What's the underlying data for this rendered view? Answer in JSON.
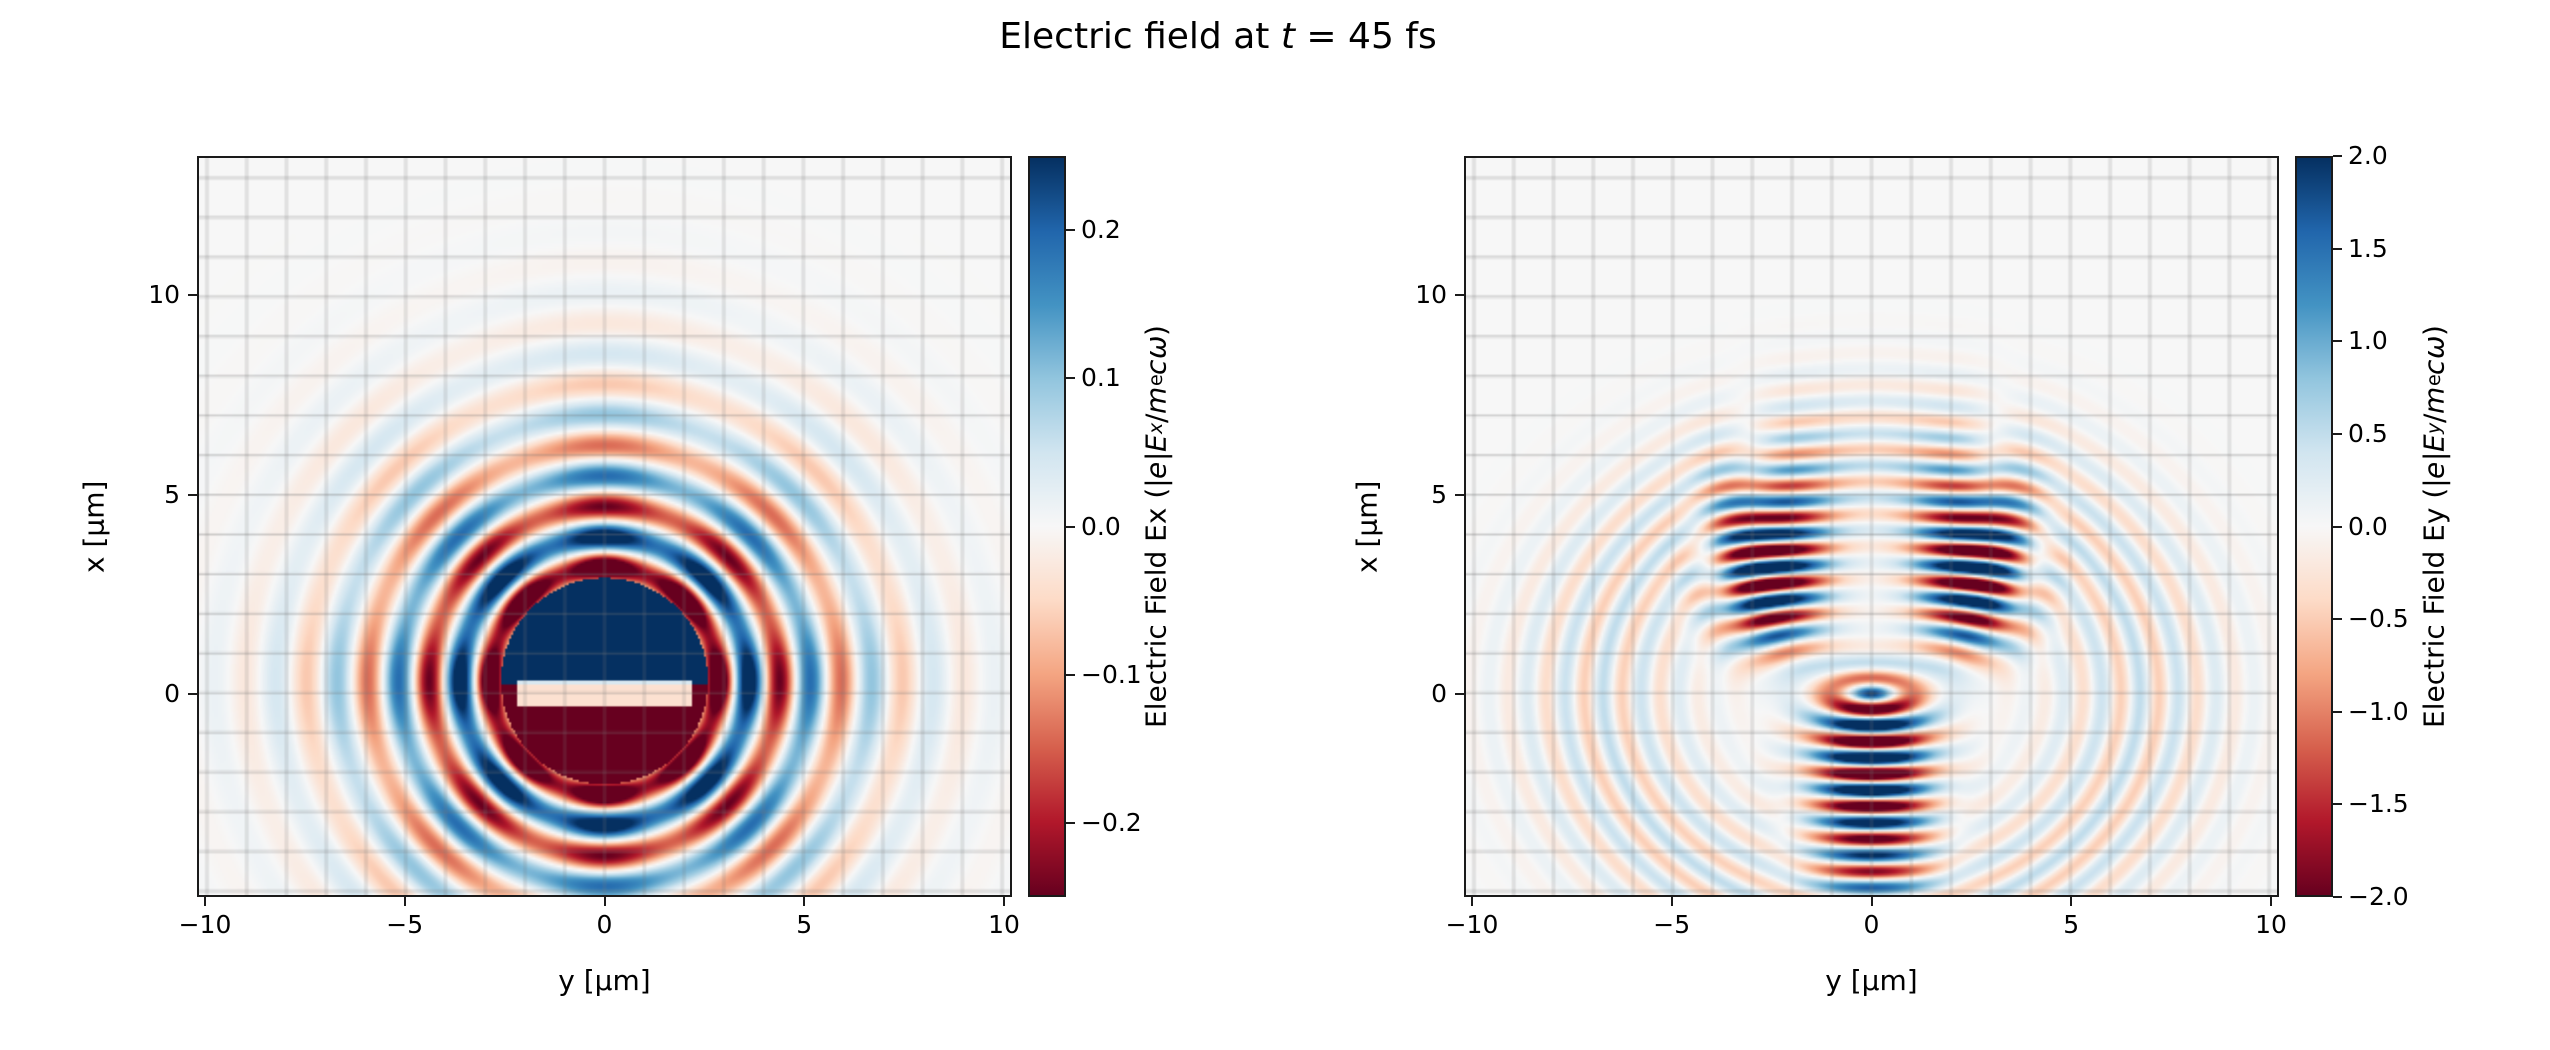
{
  "title": {
    "text": "Electric field at t = 45 fs",
    "parts": [
      {
        "t": "Electric field at "
      },
      {
        "t": "t",
        "s": "i"
      },
      {
        "t": " = 45 fs"
      }
    ]
  },
  "figure": {
    "background": "#ffffff",
    "axes_background": "#f7f7f7",
    "spine_color": "#1a1a1a",
    "grid_color": "#787878"
  },
  "colormap_rdbu": {
    "name": "RdBu",
    "stops": [
      "#67001f",
      "#b2182b",
      "#d6604d",
      "#f4a582",
      "#fddbc7",
      "#f7f7f7",
      "#d1e5f0",
      "#92c5de",
      "#4393c3",
      "#2166ac",
      "#053061"
    ]
  },
  "chart_data": [
    {
      "type": "heatmap",
      "name": "Ex-field-map",
      "xlabel": "y [μm]",
      "ylabel": "x [μm]",
      "xlim": [
        -10.2,
        10.2
      ],
      "ylim": [
        -5.1,
        13.5
      ],
      "xticks": [
        {
          "v": -10,
          "label": "−10"
        },
        {
          "v": -5,
          "label": "−5"
        },
        {
          "v": 0,
          "label": "0"
        },
        {
          "v": 5,
          "label": "5"
        },
        {
          "v": 10,
          "label": "10"
        }
      ],
      "yticks": [
        {
          "v": 0,
          "label": "0"
        },
        {
          "v": 5,
          "label": "5"
        },
        {
          "v": 10,
          "label": "10"
        }
      ],
      "grid": {
        "on": true,
        "spacing": 1
      },
      "colorbar": {
        "label_text": "Electric Field Ex (|e|Ex/mecω)",
        "label_parts": [
          {
            "t": "Electric Field Ex (|"
          },
          {
            "t": "e",
            "s": "i"
          },
          {
            "t": "|"
          },
          {
            "t": "E",
            "s": "i"
          },
          {
            "t": "x",
            "s": "isub"
          },
          {
            "t": "/"
          },
          {
            "t": "m",
            "s": "i"
          },
          {
            "t": "e",
            "s": "sub"
          },
          {
            "t": "c",
            "s": "i"
          },
          {
            "t": "ω",
            "s": "i"
          },
          {
            "t": ")"
          }
        ],
        "vmin": -0.25,
        "vmax": 0.25,
        "ticks": [
          {
            "v": 0.2,
            "label": "0.2"
          },
          {
            "v": 0.1,
            "label": "0.1"
          },
          {
            "v": 0.0,
            "label": "0.0"
          },
          {
            "v": -0.1,
            "label": "−0.1"
          },
          {
            "v": -0.2,
            "label": "−0.2"
          }
        ]
      },
      "field_model": {
        "kind": "rings",
        "center": [
          0,
          0.3
        ],
        "wavelength": 1.55,
        "ring_start": 2.1,
        "env_sigma": 5.3,
        "env_amp": 0.5,
        "core_radius": 2.6,
        "core_split_x": -0.1,
        "slot_x": 0,
        "slot_halfwidth": 0.32,
        "slot_halflength": 2.2
      }
    },
    {
      "type": "heatmap",
      "name": "Ey-field-map",
      "xlabel": "y [μm]",
      "ylabel": "x [μm]",
      "xlim": [
        -10.2,
        10.2
      ],
      "ylim": [
        -5.1,
        13.5
      ],
      "xticks": [
        {
          "v": -10,
          "label": "−10"
        },
        {
          "v": -5,
          "label": "−5"
        },
        {
          "v": 0,
          "label": "0"
        },
        {
          "v": 5,
          "label": "5"
        },
        {
          "v": 10,
          "label": "10"
        }
      ],
      "yticks": [
        {
          "v": 0,
          "label": "0"
        },
        {
          "v": 5,
          "label": "5"
        },
        {
          "v": 10,
          "label": "10"
        }
      ],
      "grid": {
        "on": true,
        "spacing": 1
      },
      "colorbar": {
        "label_text": "Electric Field Ey (|e|Ey/mecω)",
        "label_parts": [
          {
            "t": "Electric Field Ey (|"
          },
          {
            "t": "e",
            "s": "i"
          },
          {
            "t": "|"
          },
          {
            "t": "E",
            "s": "i"
          },
          {
            "t": "y",
            "s": "isub"
          },
          {
            "t": "/"
          },
          {
            "t": "m",
            "s": "i"
          },
          {
            "t": "e",
            "s": "sub"
          },
          {
            "t": "c",
            "s": "i"
          },
          {
            "t": "ω",
            "s": "i"
          },
          {
            "t": ")"
          }
        ],
        "vmin": -2.0,
        "vmax": 2.0,
        "ticks": [
          {
            "v": 2.0,
            "label": "2.0"
          },
          {
            "v": 1.5,
            "label": "1.5"
          },
          {
            "v": 1.0,
            "label": "1.0"
          },
          {
            "v": 0.5,
            "label": "0.5"
          },
          {
            "v": 0.0,
            "label": "0.0"
          },
          {
            "v": -0.5,
            "label": "−0.5"
          },
          {
            "v": -1.0,
            "label": "−1.0"
          },
          {
            "v": -1.5,
            "label": "−1.5"
          },
          {
            "v": -2.0,
            "label": "−2.0"
          }
        ]
      },
      "field_model": {
        "kind": "stripes",
        "wavelength": 0.82,
        "phase_ycurve": 0.12,
        "lobes": {
          "amp": 3.2,
          "y_center": 2.5,
          "y_sigma": 1.25,
          "x_center": 3.2,
          "x_sigma": 2.5,
          "x_on": 0.7
        },
        "column": {
          "amp": 3.2,
          "y_sigma": 1.4,
          "x_center": -1.6,
          "x_sigma": 3.4,
          "x_off": 0.4
        },
        "outer_rings": {
          "amp": 0.5,
          "radius": 5.8,
          "sigma": 2.0
        }
      }
    }
  ]
}
